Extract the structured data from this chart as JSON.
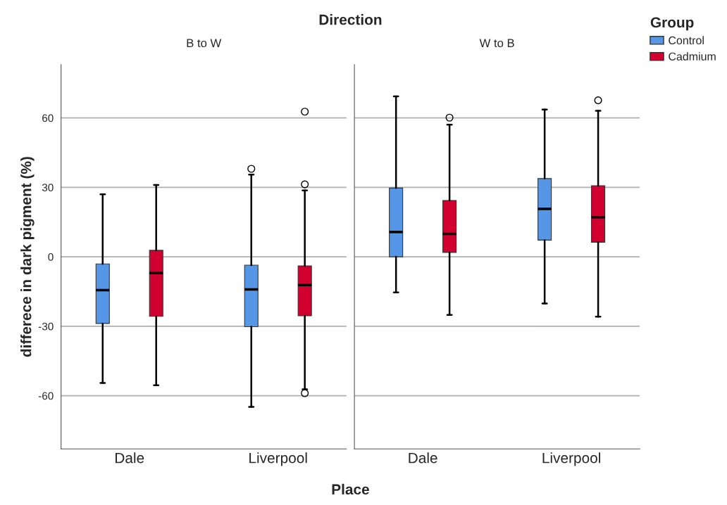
{
  "chart_data": [
    {
      "type": "box",
      "title": "B to W",
      "ylabel": "differece in dark pigment (%)",
      "xlabel": "Place",
      "annotations": [
        "Direction"
      ],
      "categories": [
        "Dale",
        "Liverpool"
      ],
      "ylim": [
        -83,
        83
      ],
      "yticks": [
        -60,
        -30,
        0,
        30,
        60
      ],
      "grid": "y",
      "legend": "right",
      "legend_title": "Group",
      "series": [
        {
          "name": "Control",
          "color": "#5596e6",
          "boxes": [
            {
              "low": -54.5,
              "q1": -28.8,
              "median": -14.4,
              "q3": -3.1,
              "high": 27
            },
            {
              "low": -64.8,
              "q1": -30.2,
              "median": -14.1,
              "q3": -3.6,
              "high": 35.5,
              "outliers": [
                38
              ]
            }
          ]
        },
        {
          "name": "Cadmium",
          "color": "#d2002f",
          "boxes": [
            {
              "low": -55.5,
              "q1": -25.7,
              "median": -7,
              "q3": 2.8,
              "high": 31
            },
            {
              "low": -57.2,
              "q1": -25.5,
              "median": -12.2,
              "q3": -3.9,
              "high": 28.7,
              "outliers": [
                31.3,
                -58.9,
                62.7
              ]
            }
          ]
        }
      ]
    },
    {
      "type": "box",
      "title": "W to B",
      "categories": [
        "Dale",
        "Liverpool"
      ],
      "ylim": [
        -83,
        83
      ],
      "yticks": [
        -60,
        -30,
        0,
        30,
        60
      ],
      "grid": "y",
      "tick_labels": "x",
      "series": [
        {
          "color": "#5596e6",
          "boxes": [
            {
              "low": -15.4,
              "q1": 0,
              "median": 10.7,
              "q3": 29.7,
              "high": 69.3
            },
            {
              "low": -20.2,
              "q1": 7.2,
              "median": 20.7,
              "q3": 33.8,
              "high": 63.6
            }
          ]
        },
        {
          "color": "#d2002f",
          "boxes": [
            {
              "low": -25.1,
              "q1": 1.9,
              "median": 9.9,
              "q3": 24.3,
              "high": 57.1,
              "outliers": [
                60.1
              ]
            },
            {
              "low": -25.9,
              "q1": 6.3,
              "median": 17.1,
              "q3": 30.7,
              "high": 63.1,
              "outliers": [
                67.6
              ]
            }
          ]
        }
      ]
    }
  ]
}
